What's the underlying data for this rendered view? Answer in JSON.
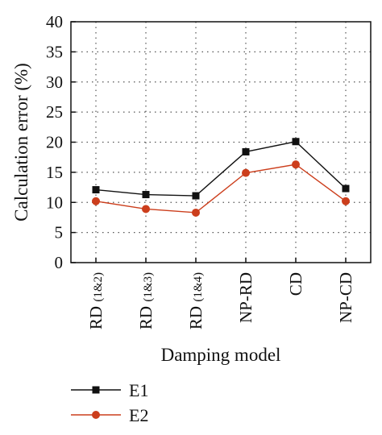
{
  "chart_data": {
    "type": "line",
    "categories": [
      "RD (1&2)",
      "RD (1&3)",
      "RD (1&4)",
      "NP-RD",
      "CD",
      "NP-CD"
    ],
    "series": [
      {
        "name": "E1",
        "values": [
          12.1,
          11.3,
          11.1,
          18.4,
          20.1,
          12.3
        ],
        "color": "#111111",
        "marker": "square"
      },
      {
        "name": "E2",
        "values": [
          10.2,
          8.9,
          8.3,
          14.9,
          16.3,
          10.2
        ],
        "color": "#cc3e1c",
        "marker": "circle"
      }
    ],
    "xlabel": "Damping model",
    "ylabel": "Calculation error (%)",
    "ylim": [
      0,
      40
    ],
    "yticks": [
      "0",
      "5",
      "10",
      "15",
      "20",
      "25",
      "30",
      "35",
      "40"
    ],
    "grid": true,
    "grid_style": "dotted",
    "legend_position": "bottom-left"
  }
}
